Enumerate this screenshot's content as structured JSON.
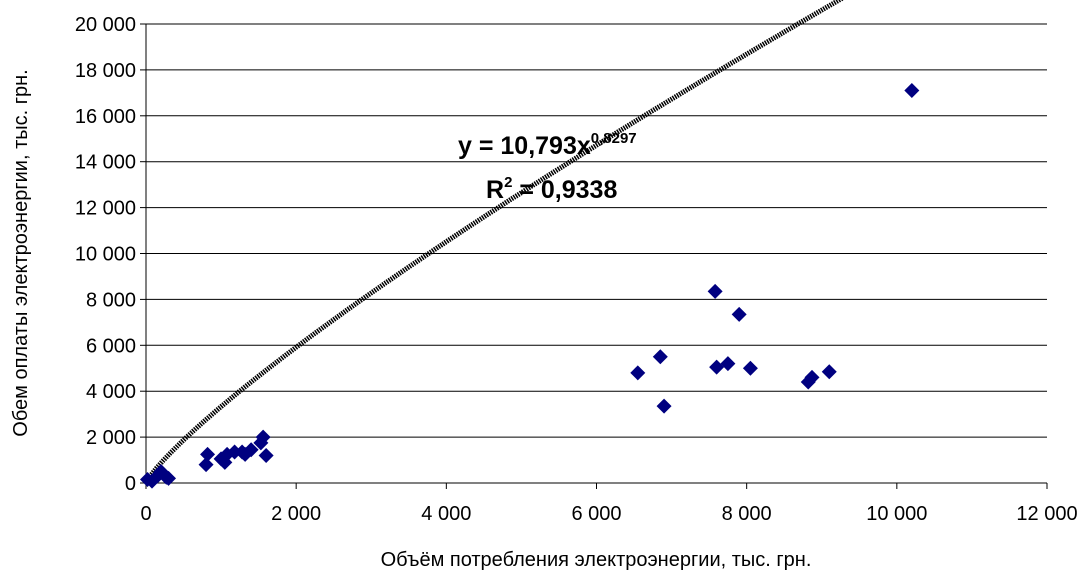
{
  "chart_data": {
    "type": "scatter",
    "xlabel": "Объём потребления электроэнергии, тыс. грн.",
    "ylabel": "Обем оплаты электроэнергии, тыс. грн.",
    "xlim": [
      0,
      12000
    ],
    "ylim": [
      0,
      20000
    ],
    "x_ticks": [
      0,
      2000,
      4000,
      6000,
      8000,
      10000,
      12000
    ],
    "x_tick_labels": [
      "0",
      "2 000",
      "4 000",
      "6 000",
      "8 000",
      "10 000",
      "12 000"
    ],
    "y_ticks": [
      0,
      2000,
      4000,
      6000,
      8000,
      10000,
      12000,
      14000,
      16000,
      18000,
      20000
    ],
    "y_tick_labels": [
      "0",
      "2 000",
      "4 000",
      "6 000",
      "8 000",
      "10 000",
      "12 000",
      "14 000",
      "16 000",
      "18 000",
      "20 000"
    ],
    "grid": "horizontal",
    "marker_color": "#000080",
    "trendline_color": "#000000",
    "points": [
      {
        "x": 20,
        "y": 150
      },
      {
        "x": 80,
        "y": 80
      },
      {
        "x": 150,
        "y": 300
      },
      {
        "x": 200,
        "y": 500
      },
      {
        "x": 270,
        "y": 250
      },
      {
        "x": 300,
        "y": 200
      },
      {
        "x": 800,
        "y": 800
      },
      {
        "x": 820,
        "y": 1250
      },
      {
        "x": 1000,
        "y": 1050
      },
      {
        "x": 1050,
        "y": 900
      },
      {
        "x": 1080,
        "y": 1250
      },
      {
        "x": 1180,
        "y": 1350
      },
      {
        "x": 1280,
        "y": 1350
      },
      {
        "x": 1320,
        "y": 1250
      },
      {
        "x": 1400,
        "y": 1450
      },
      {
        "x": 1530,
        "y": 1750
      },
      {
        "x": 1560,
        "y": 2000
      },
      {
        "x": 1600,
        "y": 1200
      },
      {
        "x": 6550,
        "y": 4800
      },
      {
        "x": 6850,
        "y": 5500
      },
      {
        "x": 6900,
        "y": 3350
      },
      {
        "x": 7580,
        "y": 8350
      },
      {
        "x": 7600,
        "y": 5050
      },
      {
        "x": 7750,
        "y": 5200
      },
      {
        "x": 7900,
        "y": 7350
      },
      {
        "x": 8050,
        "y": 5000
      },
      {
        "x": 8820,
        "y": 4400
      },
      {
        "x": 8870,
        "y": 4600
      },
      {
        "x": 9100,
        "y": 4850
      },
      {
        "x": 10200,
        "y": 17100
      }
    ],
    "trendline": {
      "type": "power",
      "coef": 10.793,
      "exponent": 0.8297,
      "x_range": [
        50,
        10200
      ],
      "equation_text": "y = 10,793x",
      "equation_exponent": "0,8297",
      "r2_text": "R",
      "r2_superscript": "2",
      "r2_value_text": " = 0,9338"
    }
  }
}
